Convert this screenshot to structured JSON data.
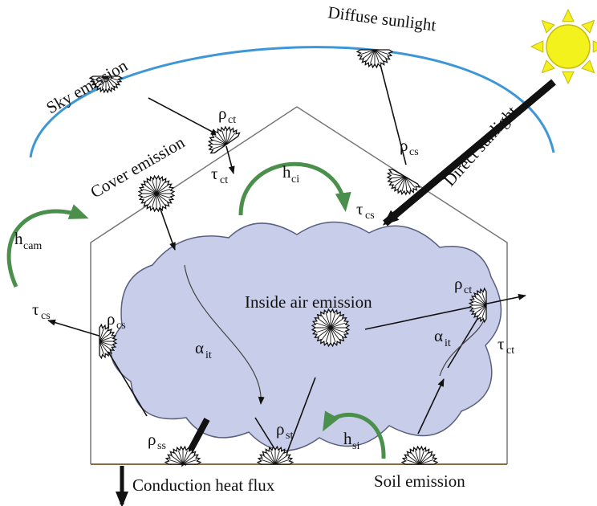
{
  "labels": {
    "sky_emission": "Sky emission",
    "diffuse_sunlight": "Diffuse sunlight",
    "direct_sunlight": "Direct sunlight",
    "cover_emission": "Cover emission",
    "inside_air_emission": "Inside air emission",
    "conduction_heat_flux": "Conduction heat flux",
    "soil_emission": "Soil emission"
  },
  "symbols": {
    "rho": "ρ",
    "tau": "τ",
    "alpha": "α",
    "h": "h",
    "sub_ct": "ct",
    "sub_cs": "cs",
    "sub_ci": "ci",
    "sub_cam": "cam",
    "sub_it": "it",
    "sub_ss": "ss",
    "sub_st": "st",
    "sub_si": "si"
  },
  "colors": {
    "sky_arc": "#3d97d6",
    "sun_fill": "#f3f21c",
    "sun_stroke": "#c9b90f",
    "cloud_fill": "#c8cde9",
    "cloud_stroke": "#5b5f80",
    "green_arrow": "#4b8f4c",
    "soil_line": "#8a6a3e",
    "house_line": "#777777"
  }
}
